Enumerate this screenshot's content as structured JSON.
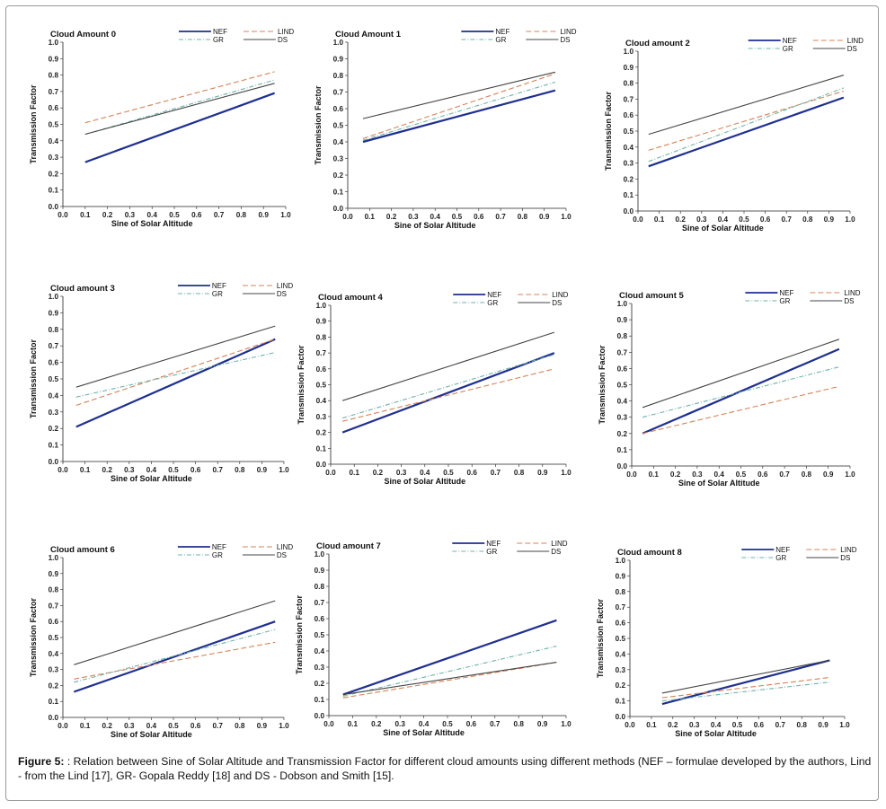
{
  "figure": {
    "caption_label": "Figure 5:",
    "caption_text": " : Relation between Sine of Solar Altitude and Transmission Factor for different cloud amounts using different methods (NEF – formulae developed by the authors, Lind - from the Lind [17], GR- Gopala Reddy [18] and DS - Dobson and Smith [15]."
  },
  "colors": {
    "NEF": "#1f2f8f",
    "LIND": "#d4845a",
    "GR": "#6fb3a8",
    "DS": "#444444"
  },
  "chart_data": [
    {
      "type": "line",
      "title": "Cloud Amount 0",
      "xlabel": "Sine of Solar Altitude",
      "ylabel": "Transmission Factor",
      "xlim": [
        0,
        1
      ],
      "ylim": [
        0,
        1
      ],
      "xticks": [
        "0.0",
        "0.1",
        "0.2",
        "0.3",
        "0.4",
        "0.5",
        "0.6",
        "0.7",
        "0.8",
        "0.9",
        "1.0"
      ],
      "yticks": [
        "0.0",
        "0.1",
        "0.2",
        "0.3",
        "0.4",
        "0.5",
        "0.6",
        "0.7",
        "0.8",
        "0.9",
        "1.0"
      ],
      "series": [
        {
          "name": "NEF",
          "x": [
            0.1,
            0.95
          ],
          "y": [
            0.27,
            0.69
          ]
        },
        {
          "name": "LIND",
          "x": [
            0.1,
            0.95
          ],
          "y": [
            0.51,
            0.82
          ]
        },
        {
          "name": "GR",
          "x": [
            0.1,
            0.95
          ],
          "y": [
            0.44,
            0.77
          ]
        },
        {
          "name": "DS",
          "x": [
            0.1,
            0.95
          ],
          "y": [
            0.44,
            0.75
          ]
        }
      ]
    },
    {
      "type": "line",
      "title": "Cloud Amount 1",
      "xlabel": "Sine of Solar Altitude",
      "ylabel": "Transmission Factor",
      "xlim": [
        0,
        1
      ],
      "ylim": [
        0,
        1
      ],
      "xticks": [
        "0.0",
        "0.1",
        "0.2",
        "0.3",
        "0.4",
        "0.5",
        "0.6",
        "0.7",
        "0.8",
        "0.9",
        "1.0"
      ],
      "yticks": [
        "0.0",
        "0.1",
        "0.2",
        "0.3",
        "0.4",
        "0.5",
        "0.6",
        "0.7",
        "0.8",
        "0.9",
        "1.0"
      ],
      "series": [
        {
          "name": "NEF",
          "x": [
            0.07,
            0.95
          ],
          "y": [
            0.4,
            0.71
          ]
        },
        {
          "name": "LIND",
          "x": [
            0.07,
            0.95
          ],
          "y": [
            0.42,
            0.81
          ]
        },
        {
          "name": "GR",
          "x": [
            0.07,
            0.95
          ],
          "y": [
            0.41,
            0.76
          ]
        },
        {
          "name": "DS",
          "x": [
            0.07,
            0.95
          ],
          "y": [
            0.54,
            0.82
          ]
        }
      ]
    },
    {
      "type": "line",
      "title": "Cloud amount 2",
      "xlabel": "Sine of Solar Altitude",
      "ylabel": "Transmission Factor",
      "xlim": [
        0,
        1
      ],
      "ylim": [
        0,
        1
      ],
      "xticks": [
        "0.0",
        "0.1",
        "0.2",
        "0.3",
        "0.4",
        "0.5",
        "0.6",
        "0.7",
        "0.8",
        "0.9",
        "1.0"
      ],
      "yticks": [
        "0.0",
        "0.1",
        "0.2",
        "0.3",
        "0.4",
        "0.5",
        "0.6",
        "0.7",
        "0.8",
        "0.9",
        "1.0"
      ],
      "series": [
        {
          "name": "NEF",
          "x": [
            0.05,
            0.97
          ],
          "y": [
            0.28,
            0.71
          ]
        },
        {
          "name": "LIND",
          "x": [
            0.05,
            0.97
          ],
          "y": [
            0.38,
            0.75
          ]
        },
        {
          "name": "GR",
          "x": [
            0.05,
            0.97
          ],
          "y": [
            0.31,
            0.77
          ]
        },
        {
          "name": "DS",
          "x": [
            0.05,
            0.97
          ],
          "y": [
            0.48,
            0.85
          ]
        }
      ]
    },
    {
      "type": "line",
      "title": "Cloud amount 3",
      "xlabel": "Sine of Solar Altitude",
      "ylabel": "Transmission Factor",
      "xlim": [
        0,
        1
      ],
      "ylim": [
        0,
        1
      ],
      "xticks": [
        "0.0",
        "0.1",
        "0.2",
        "0.3",
        "0.4",
        "0.5",
        "0.6",
        "0.7",
        "0.8",
        "0.9",
        "1.0"
      ],
      "yticks": [
        "0.0",
        "0.1",
        "0.2",
        "0.3",
        "0.4",
        "0.5",
        "0.6",
        "0.7",
        "0.8",
        "0.9",
        "1.0"
      ],
      "series": [
        {
          "name": "NEF",
          "x": [
            0.06,
            0.96
          ],
          "y": [
            0.21,
            0.74
          ]
        },
        {
          "name": "LIND",
          "x": [
            0.06,
            0.96
          ],
          "y": [
            0.34,
            0.74
          ]
        },
        {
          "name": "GR",
          "x": [
            0.06,
            0.96
          ],
          "y": [
            0.39,
            0.66
          ]
        },
        {
          "name": "DS",
          "x": [
            0.06,
            0.96
          ],
          "y": [
            0.45,
            0.82
          ]
        }
      ]
    },
    {
      "type": "line",
      "title": "Cloud amount 4",
      "xlabel": "Sine of Solar Altitude",
      "ylabel": "Transmission Factor",
      "xlim": [
        0,
        1
      ],
      "ylim": [
        0,
        1
      ],
      "xticks": [
        "0.0",
        "0.1",
        "0.2",
        "0.3",
        "0.4",
        "0.5",
        "0.6",
        "0.7",
        "0.8",
        "0.9",
        "1.0"
      ],
      "yticks": [
        "0.0",
        "0.1",
        "0.2",
        "0.3",
        "0.4",
        "0.5",
        "0.6",
        "0.7",
        "0.8",
        "0.9",
        "1.0"
      ],
      "series": [
        {
          "name": "NEF",
          "x": [
            0.05,
            0.95
          ],
          "y": [
            0.2,
            0.7
          ]
        },
        {
          "name": "LIND",
          "x": [
            0.05,
            0.95
          ],
          "y": [
            0.27,
            0.6
          ]
        },
        {
          "name": "GR",
          "x": [
            0.05,
            0.95
          ],
          "y": [
            0.29,
            0.69
          ]
        },
        {
          "name": "DS",
          "x": [
            0.05,
            0.95
          ],
          "y": [
            0.4,
            0.83
          ]
        }
      ]
    },
    {
      "type": "line",
      "title": "Cloud amount 5",
      "xlabel": "Sine of Solar Altitude",
      "ylabel": "Transmission Factor",
      "xlim": [
        0,
        1
      ],
      "ylim": [
        0,
        1
      ],
      "xticks": [
        "0.0",
        "0.1",
        "0.2",
        "0.3",
        "0.4",
        "0.5",
        "0.6",
        "0.7",
        "0.8",
        "0.9",
        "1.0"
      ],
      "yticks": [
        "0.0",
        "0.1",
        "0.2",
        "0.3",
        "0.4",
        "0.5",
        "0.6",
        "0.7",
        "0.8",
        "0.9",
        "1.0"
      ],
      "series": [
        {
          "name": "NEF",
          "x": [
            0.05,
            0.95
          ],
          "y": [
            0.2,
            0.72
          ]
        },
        {
          "name": "LIND",
          "x": [
            0.05,
            0.95
          ],
          "y": [
            0.2,
            0.49
          ]
        },
        {
          "name": "GR",
          "x": [
            0.05,
            0.95
          ],
          "y": [
            0.3,
            0.61
          ]
        },
        {
          "name": "DS",
          "x": [
            0.05,
            0.95
          ],
          "y": [
            0.36,
            0.78
          ]
        }
      ]
    },
    {
      "type": "line",
      "title": "Cloud amount 6",
      "xlabel": "Sine of Solar Altitude",
      "ylabel": "Transmission Factor",
      "xlim": [
        0,
        1
      ],
      "ylim": [
        0,
        1
      ],
      "xticks": [
        "0.0",
        "0.1",
        "0.2",
        "0.3",
        "0.4",
        "0.5",
        "0.6",
        "0.7",
        "0.8",
        "0.9",
        "1.0"
      ],
      "yticks": [
        "0.0",
        "0.1",
        "0.2",
        "0.3",
        "0.4",
        "0.5",
        "0.6",
        "0.7",
        "0.8",
        "0.9",
        "1.0"
      ],
      "series": [
        {
          "name": "NEF",
          "x": [
            0.05,
            0.96
          ],
          "y": [
            0.16,
            0.6
          ]
        },
        {
          "name": "LIND",
          "x": [
            0.05,
            0.96
          ],
          "y": [
            0.24,
            0.47
          ]
        },
        {
          "name": "GR",
          "x": [
            0.05,
            0.96
          ],
          "y": [
            0.22,
            0.55
          ]
        },
        {
          "name": "DS",
          "x": [
            0.05,
            0.96
          ],
          "y": [
            0.33,
            0.73
          ]
        }
      ]
    },
    {
      "type": "line",
      "title": "Cloud amount 7",
      "xlabel": "Sine of Solar Altitude",
      "ylabel": "Transmission Factor",
      "xlim": [
        0,
        1
      ],
      "ylim": [
        0,
        1
      ],
      "xticks": [
        "0.0",
        "0.1",
        "0.2",
        "0.3",
        "0.4",
        "0.5",
        "0.6",
        "0.7",
        "0.8",
        "0.9",
        "1.0"
      ],
      "yticks": [
        "0.0",
        "0.1",
        "0.2",
        "0.3",
        "0.4",
        "0.5",
        "0.6",
        "0.7",
        "0.8",
        "0.9",
        "1.0"
      ],
      "series": [
        {
          "name": "NEF",
          "x": [
            0.06,
            0.96
          ],
          "y": [
            0.13,
            0.59
          ]
        },
        {
          "name": "LIND",
          "x": [
            0.06,
            0.96
          ],
          "y": [
            0.11,
            0.33
          ]
        },
        {
          "name": "GR",
          "x": [
            0.06,
            0.96
          ],
          "y": [
            0.12,
            0.43
          ]
        },
        {
          "name": "DS",
          "x": [
            0.06,
            0.96
          ],
          "y": [
            0.13,
            0.33
          ]
        }
      ]
    },
    {
      "type": "line",
      "title": "Cloud amount 8",
      "xlabel": "Sine of Solar Altitude",
      "ylabel": "Transmission Factor",
      "xlim": [
        0,
        1
      ],
      "ylim": [
        0,
        1
      ],
      "xticks": [
        "0.0",
        "0.1",
        "0.2",
        "0.3",
        "0.4",
        "0.5",
        "0.6",
        "0.7",
        "0.8",
        "0.9",
        "1.0"
      ],
      "yticks": [
        "0.0",
        "0.1",
        "0.2",
        "0.3",
        "0.4",
        "0.5",
        "0.6",
        "0.7",
        "0.8",
        "0.9",
        "1.0"
      ],
      "series": [
        {
          "name": "NEF",
          "x": [
            0.15,
            0.93
          ],
          "y": [
            0.08,
            0.36
          ]
        },
        {
          "name": "LIND",
          "x": [
            0.15,
            0.93
          ],
          "y": [
            0.12,
            0.25
          ]
        },
        {
          "name": "GR",
          "x": [
            0.15,
            0.93
          ],
          "y": [
            0.1,
            0.22
          ]
        },
        {
          "name": "DS",
          "x": [
            0.15,
            0.93
          ],
          "y": [
            0.15,
            0.36
          ]
        }
      ]
    }
  ]
}
